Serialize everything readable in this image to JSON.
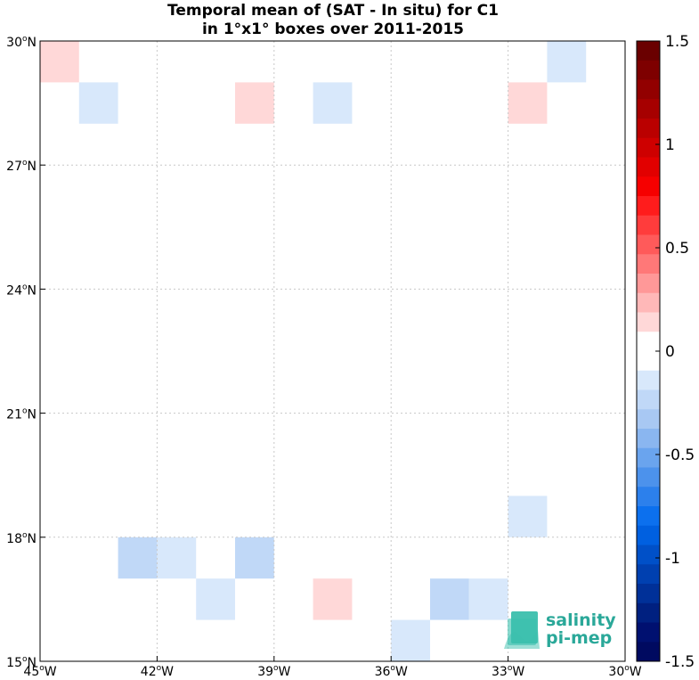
{
  "chart_data": {
    "type": "heatmap",
    "title_lines": [
      "Temporal mean of (SAT - In situ) for C1",
      "in 1°x1° boxes over 2011-2015"
    ],
    "x_range": [
      -45,
      -30
    ],
    "y_range": [
      15,
      30
    ],
    "x_ticks": [
      -45,
      -42,
      -39,
      -36,
      -33,
      -30
    ],
    "x_tick_labels": [
      "45°W",
      "42°W",
      "39°W",
      "36°W",
      "33°W",
      "30°W"
    ],
    "y_ticks": [
      15,
      18,
      21,
      24,
      27,
      30
    ],
    "y_tick_labels": [
      "15°N",
      "18°N",
      "21°N",
      "24°N",
      "27°N",
      "30°N"
    ],
    "grid": true,
    "cells": [
      {
        "lon": -45,
        "lat": 29,
        "value": 0.15
      },
      {
        "lon": -44,
        "lat": 28,
        "value": -0.15
      },
      {
        "lon": -40,
        "lat": 28,
        "value": 0.15
      },
      {
        "lon": -38,
        "lat": 28,
        "value": -0.15
      },
      {
        "lon": -33,
        "lat": 28,
        "value": 0.15
      },
      {
        "lon": -32,
        "lat": 29,
        "value": -0.15
      },
      {
        "lon": -33,
        "lat": 18,
        "value": -0.15
      },
      {
        "lon": -43,
        "lat": 17,
        "value": -0.25
      },
      {
        "lon": -42,
        "lat": 17,
        "value": -0.15
      },
      {
        "lon": -40,
        "lat": 17,
        "value": -0.25
      },
      {
        "lon": -41,
        "lat": 16,
        "value": -0.15
      },
      {
        "lon": -38,
        "lat": 16,
        "value": 0.15
      },
      {
        "lon": -35,
        "lat": 16,
        "value": -0.25
      },
      {
        "lon": -34,
        "lat": 16,
        "value": -0.15
      },
      {
        "lon": -36,
        "lat": 15,
        "value": -0.15
      }
    ],
    "colorbar": {
      "range": [
        -1.5,
        1.5
      ],
      "ticks": [
        1.5,
        1,
        0.5,
        0,
        -0.5,
        -1,
        -1.5
      ],
      "tick_labels": [
        "1.5",
        "1",
        "0.5",
        "0",
        "-0.5",
        "-1",
        "-1.5"
      ],
      "placement": "right",
      "colors": [
        "#6a0000",
        "#7e0000",
        "#920000",
        "#a60000",
        "#ba0000",
        "#ce0000",
        "#e20000",
        "#f60000",
        "#ff1c1c",
        "#ff3c3c",
        "#ff5a5a",
        "#ff7878",
        "#ff9898",
        "#ffb8b8",
        "#ffd8d8",
        "#ffffff",
        "#ffffff",
        "#d8e8fb",
        "#c0d8f7",
        "#a8c8f3",
        "#8ab6f0",
        "#6aa4ee",
        "#4c92ec",
        "#2c80ec",
        "#0c70ee",
        "#0060e0",
        "#0050c8",
        "#0040b0",
        "#003098",
        "#002080",
        "#001070",
        "#000a60"
      ]
    }
  },
  "logo": {
    "line1": "salinity",
    "line2": "pi-mep",
    "text_color": "#2aa899",
    "mark_color": "#3bbfad"
  }
}
